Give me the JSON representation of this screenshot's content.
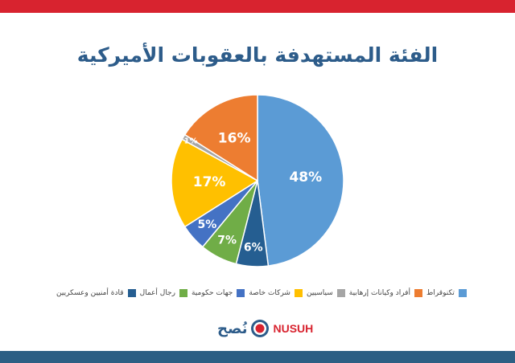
{
  "chart_data": {
    "type": "pie",
    "title": "الفئة المستهدفة بالعقوبات الأميركية",
    "slices": [
      {
        "label": "تكنوقراط",
        "value": 48,
        "display": "48%",
        "color": "#5b9bd5"
      },
      {
        "label": "قادة أمنيين وعسكريين",
        "value": 6,
        "display": "6%",
        "color": "#255e91"
      },
      {
        "label": "رجال أعمال",
        "value": 7,
        "display": "7%",
        "color": "#70ad47"
      },
      {
        "label": "جهات حكومية",
        "value": 5,
        "display": "5%",
        "color": "#4472c4"
      },
      {
        "label": "شركات خاصة",
        "value": 17,
        "display": "17%",
        "color": "#ffc000"
      },
      {
        "label": "سياسيين",
        "value": 1,
        "display": "1%",
        "color": "#a5a5a5"
      },
      {
        "label": "أفراد وكيانات إرهابية",
        "value": 16,
        "display": "16%",
        "color": "#ed7d31"
      }
    ],
    "legend_position": "bottom",
    "legend_order": [
      "تكنوقراط",
      "أفراد وكيانات إرهابية",
      "سياسيين",
      "شركات خاصة",
      "جهات حكومية",
      "رجال أعمال",
      "قادة أمنيين وعسكريين"
    ]
  },
  "logo": {
    "arabic": "نُصح",
    "english": "NUSUH"
  },
  "colors": {
    "top_bar": "#d8232f",
    "bottom_bar": "#2c5f84",
    "title": "#2d5c8a"
  }
}
